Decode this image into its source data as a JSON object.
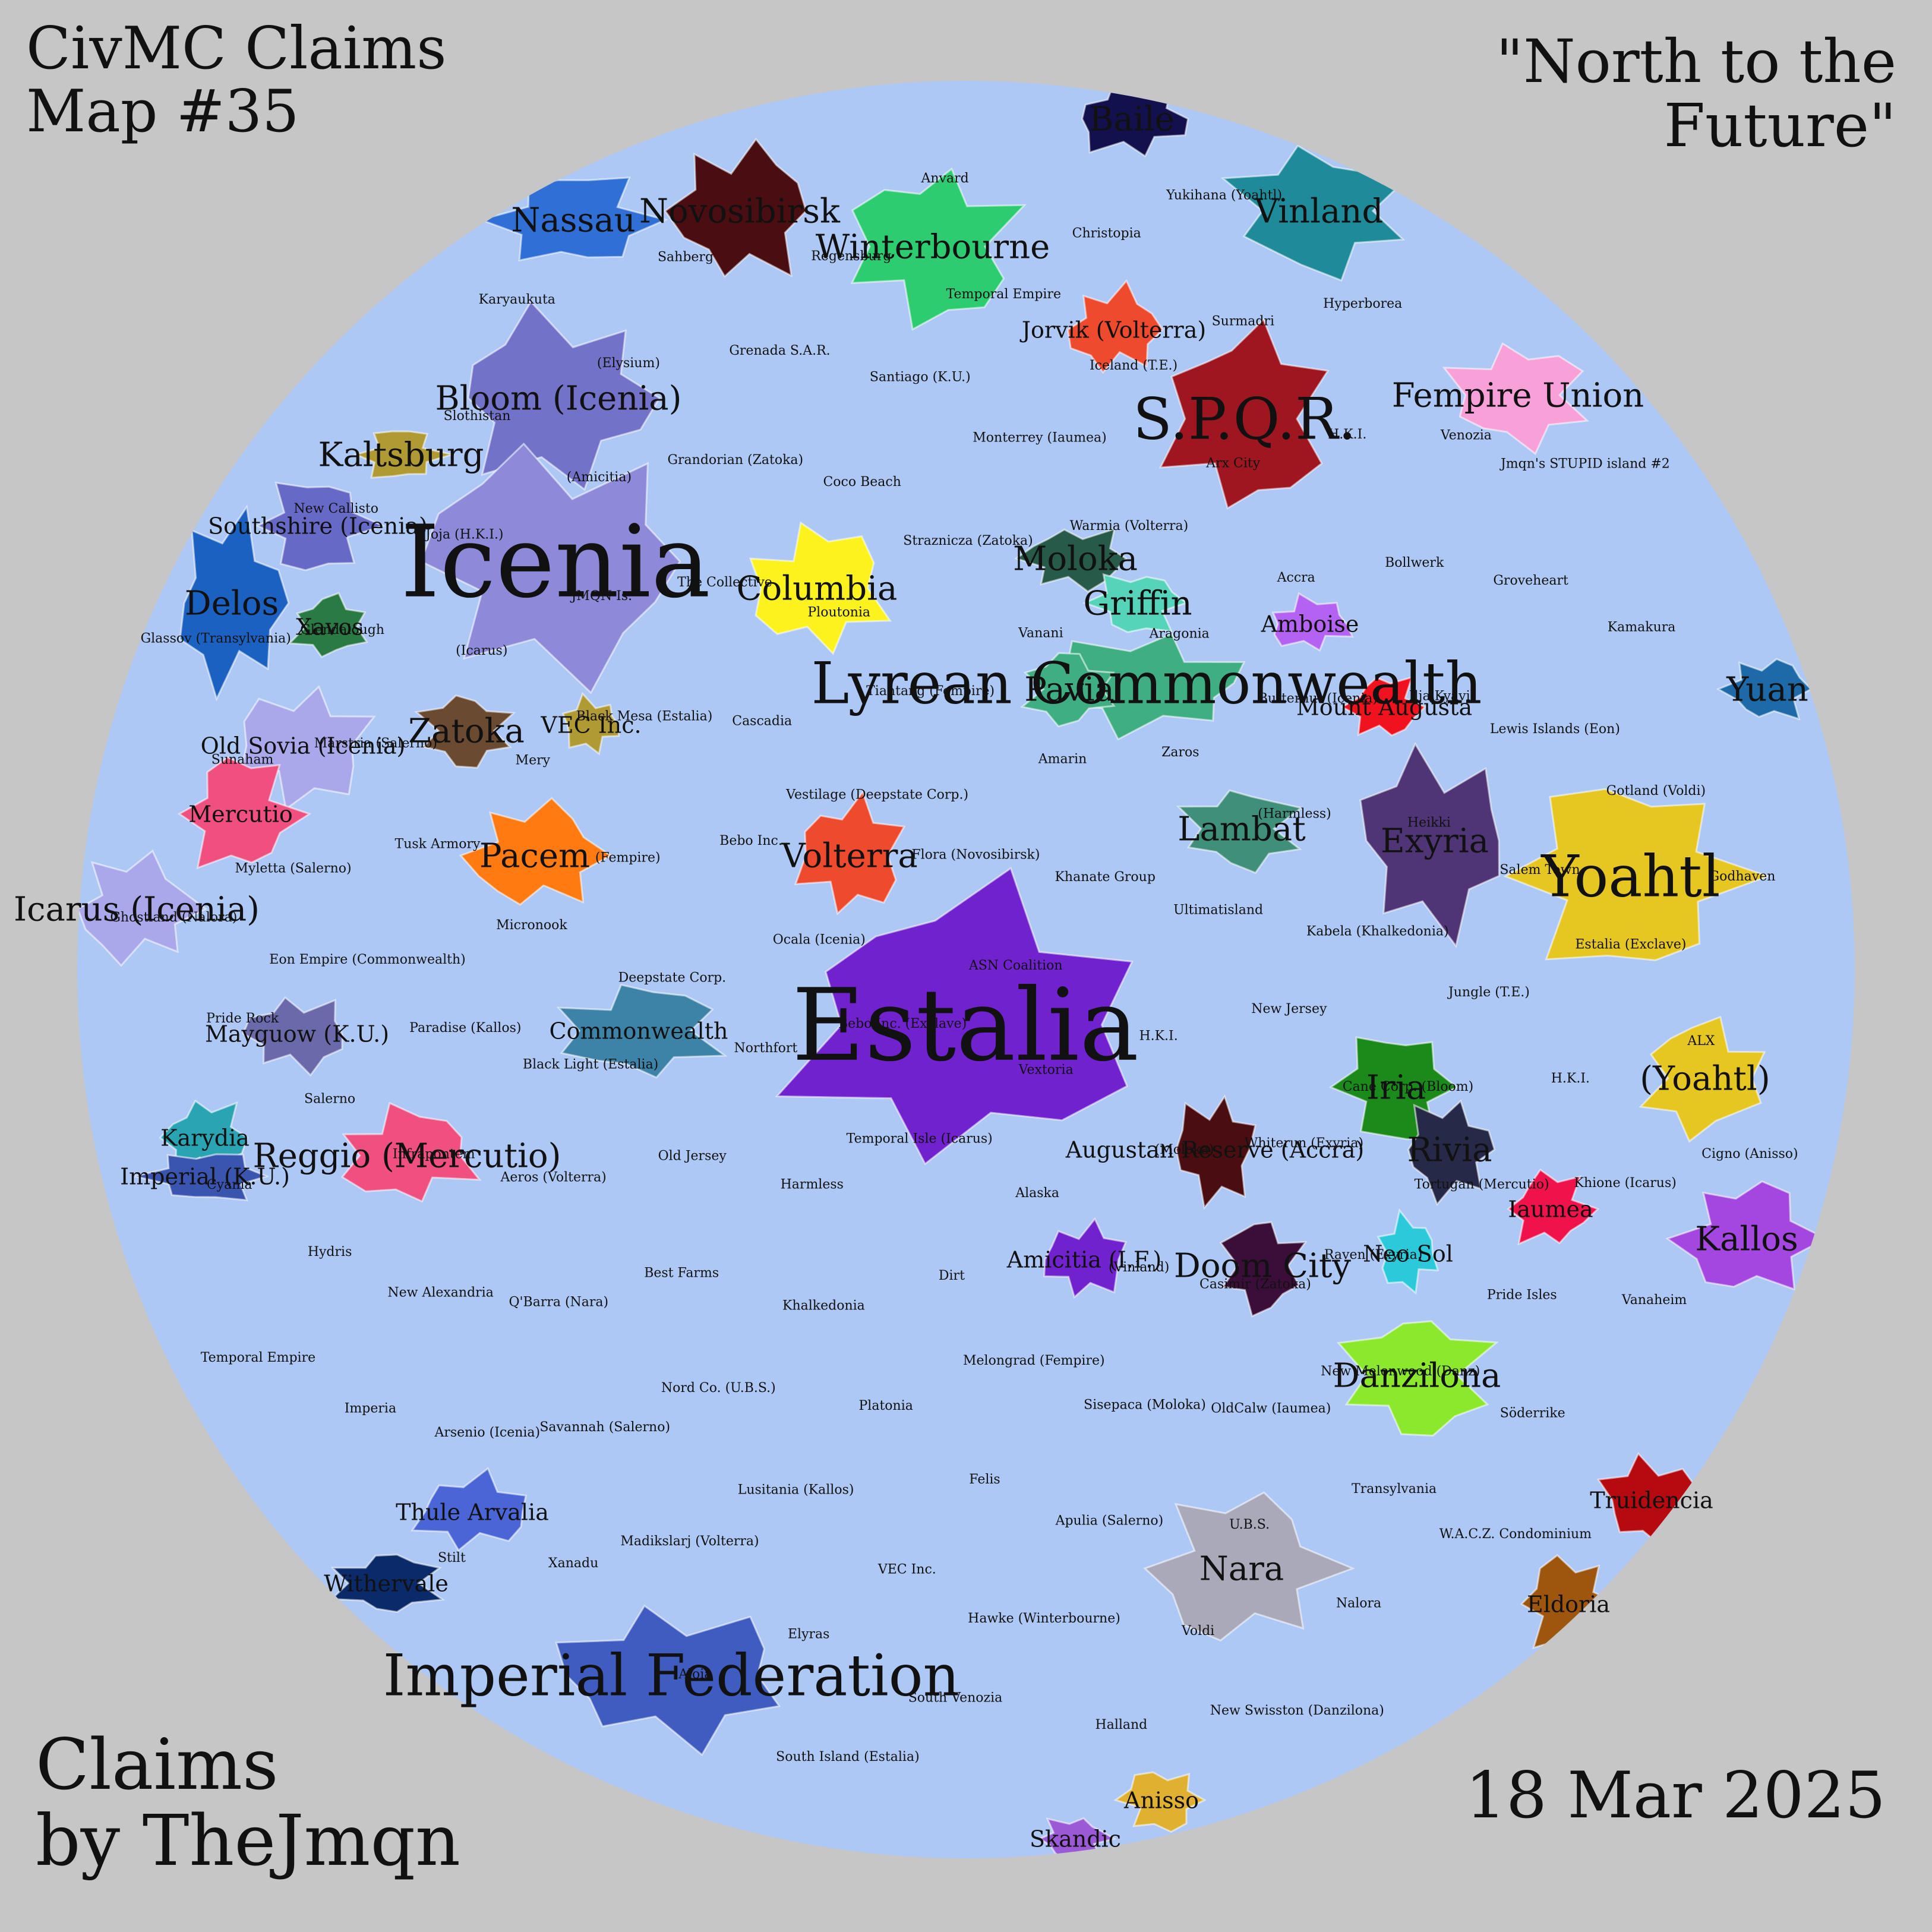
{
  "header": {
    "title_line1": "CivMC Claims",
    "title_line2": "Map #35",
    "motto_line1": "\"North to the",
    "motto_line2": "Future\""
  },
  "footer": {
    "credit_line1": "Claims",
    "credit_line2": "by TheJmqn",
    "date": "18 Mar 2025"
  },
  "colors": {
    "background": "#c6c6c6",
    "ocean": "#aec8f5",
    "border": "#ffffff"
  },
  "nations": [
    {
      "name": "Baile",
      "size": "medium",
      "color": "#13104e"
    },
    {
      "name": "Nassau",
      "size": "medium",
      "color": "#2f6fd6"
    },
    {
      "name": "Novosibirsk",
      "size": "medium",
      "color": "#4a0e12"
    },
    {
      "name": "Winterbourne",
      "size": "medium",
      "color": "#2ecc71"
    },
    {
      "name": "Vinland",
      "size": "medium",
      "color": "#1f8a99"
    },
    {
      "name": "Bloom (Icenia)",
      "size": "medium",
      "color": "#7272c9"
    },
    {
      "name": "Kaltsburg",
      "size": "medium",
      "color": "#b09a34"
    },
    {
      "name": "Jorvik (Volterra)",
      "size": "small",
      "color": "#ee4a2e"
    },
    {
      "name": "S.P.Q.R.",
      "size": "large",
      "color": "#9e1620"
    },
    {
      "name": "Fempire Union",
      "size": "medium",
      "color": "#f8a0d8"
    },
    {
      "name": "Icenia",
      "size": "xl",
      "color": "#8c8ad9"
    },
    {
      "name": "Southshire (Icenia)",
      "size": "small",
      "color": "#6669c6"
    },
    {
      "name": "Delos",
      "size": "medium",
      "color": "#1b61c2"
    },
    {
      "name": "Xavos",
      "size": "small",
      "color": "#2a7a43"
    },
    {
      "name": "Columbia",
      "size": "medium",
      "color": "#fcf31e"
    },
    {
      "name": "Moloka",
      "size": "medium",
      "color": "#285a4a"
    },
    {
      "name": "Griffin",
      "size": "medium",
      "color": "#56d4b9"
    },
    {
      "name": "Lyrean Commonwealth",
      "size": "large",
      "color": "#3fae83"
    },
    {
      "name": "Pavia",
      "size": "medium",
      "color": "#3fae83"
    },
    {
      "name": "Amboise",
      "size": "small",
      "color": "#b462f2"
    },
    {
      "name": "Mount Augusta",
      "size": "small",
      "color": "#f0121c"
    },
    {
      "name": "Yuan",
      "size": "medium",
      "color": "#1e6aa8"
    },
    {
      "name": "Old Sovia (Icenia)",
      "size": "small",
      "color": "#a8a8ea"
    },
    {
      "name": "Zatoka",
      "size": "medium",
      "color": "#6b4a32"
    },
    {
      "name": "VEC Inc.",
      "size": "small",
      "color": "#b09a34"
    },
    {
      "name": "Mercutio",
      "size": "small",
      "color": "#f05080"
    },
    {
      "name": "Pacem",
      "size": "medium",
      "color": "#ff7a10"
    },
    {
      "name": "Volterra",
      "size": "medium",
      "color": "#ee4a2e"
    },
    {
      "name": "Lambat",
      "size": "medium",
      "color": "#3f8f7a"
    },
    {
      "name": "Exyria",
      "size": "medium",
      "color": "#4f3575"
    },
    {
      "name": "Yoahtl",
      "size": "large",
      "color": "#e6c620"
    },
    {
      "name": "Icarus (Icenia)",
      "size": "medium",
      "color": "#a8a8ea"
    },
    {
      "name": "Estalia",
      "size": "xl",
      "color": "#7022cf"
    },
    {
      "name": "Commonwealth",
      "size": "small",
      "color": "#3d83a8"
    },
    {
      "name": "Mayguow (K.U.)",
      "size": "small",
      "color": "#6a6aaa"
    },
    {
      "name": "Iria",
      "size": "medium",
      "color": "#1b8a1b"
    },
    {
      "name": "Rivia",
      "size": "medium",
      "color": "#262a48"
    },
    {
      "name": "(Yoahtl)",
      "size": "medium",
      "color": "#e6c620"
    },
    {
      "name": "Reggio (Mercutio)",
      "size": "medium",
      "color": "#f05080"
    },
    {
      "name": "Karydia",
      "size": "small",
      "color": "#2aa3b3"
    },
    {
      "name": "Imperial (K.U.)",
      "size": "small",
      "color": "#3a55b0"
    },
    {
      "name": "Augustan Reserve (Accra)",
      "size": "small",
      "color": "#4a0e12"
    },
    {
      "name": "Doom City",
      "size": "medium",
      "color": "#3a0e38"
    },
    {
      "name": "Neo Sol",
      "size": "small",
      "color": "#2bc9d9"
    },
    {
      "name": "Iaumea",
      "size": "small",
      "color": "#f0124a"
    },
    {
      "name": "Kallos",
      "size": "medium",
      "color": "#a447e0"
    },
    {
      "name": "Amicitia (I.F.)",
      "size": "small",
      "color": "#7022cf"
    },
    {
      "name": "Danzilona",
      "size": "medium",
      "color": "#8be82c"
    },
    {
      "name": "Truidencia",
      "size": "small",
      "color": "#b50a10"
    },
    {
      "name": "Eldoria",
      "size": "small",
      "color": "#9e560e"
    },
    {
      "name": "Nara",
      "size": "medium",
      "color": "#a9a9b9"
    },
    {
      "name": "Thule Arvalia",
      "size": "small",
      "color": "#4a66d6"
    },
    {
      "name": "Withervale",
      "size": "small",
      "color": "#0a2a6a"
    },
    {
      "name": "Imperial Federation",
      "size": "large",
      "color": "#3f5cc0"
    },
    {
      "name": "Anisso",
      "size": "small",
      "color": "#e0b030"
    },
    {
      "name": "Skandic",
      "size": "small",
      "color": "#9a5ad6"
    }
  ],
  "small_labels": [
    "ASN Coalition",
    "Bebo Inc. (Exclave)",
    "Flora (Novosibirsk)",
    "Vextoria",
    "Ocala (Icenia)",
    "Khanate Group",
    "Temporal Isle (Icarus)",
    "Vestilage (Deepstate Corp.)",
    "H.K.I.",
    "Northfort",
    "Amarin",
    "Alaska",
    "Bebo Inc.",
    "Ultimatisland",
    "Harmless",
    "Tiantang (Fempire)",
    "(Moloka)",
    "Deepstate Corp.",
    "Zaros",
    "Dirt",
    "Cascadia",
    "New Jersey",
    "Old Jersey",
    "Vanani",
    "(Vinland)",
    "(Fempire)",
    "(Harmless)",
    "Khalkedonia",
    "Ploutonia",
    "Whiterun (Exyria)",
    "Black Light (Estalia)",
    "Aragonia",
    "Melongrad (Fempire)",
    "Black Mesa (Estalia)",
    "Kabela (Khalkedonia)",
    "Best Farms",
    "Straznicza (Zatoka)",
    "Casimir (Zatoka)",
    "Micronook",
    "Butternut (Icenia)",
    "Platonia",
    "The Collective",
    "Cane Corp. (Bloom)",
    "Aeros (Volterra)",
    "Warmia (Volterra)",
    "Sisepaca (Moloka)",
    "Mery",
    "Heikki",
    "Nord Co. (U.B.S.)",
    "Coco Beach",
    "Raven (Exyria)",
    "Paradise (Kallos)",
    "Accra",
    "Felis",
    "JMQN Is.",
    "Jungle (T.E.)",
    "Q'Barra (Nara)",
    "Monterrey (Iaumea)",
    "OldCalw (Iaumea)",
    "Tusk Armory",
    "Ilja Kyavil",
    "Lusitania (Kallos)",
    "Grandorian (Zatoka)",
    "Tortugan (Mercutio)",
    "Infrapontem",
    "Arx City",
    "Apulia (Salerno)",
    "(Icarus)",
    "Salem Town",
    "Savannah (Salerno)",
    "Santiago (K.U.)",
    "New Melonwood (Danz)",
    "Eon Empire (Commonwealth)",
    "Bollwerk",
    "VEC Inc.",
    "(Amicitia)",
    "H.K.I.",
    "New Alexandria",
    "Iceland (T.E.)",
    "U.B.S.",
    "Marstria (Salerno)",
    "Lewis Islands (Eon)",
    "Madikslarj (Volterra)",
    "Grenada S.A.R.",
    "Pride Isles",
    "Salerno",
    "H.K.I.",
    "Hawke (Winterbourne)",
    "Joja (H.K.I.)",
    "Estalia (Exclave)",
    "Arsenio (Icenia)",
    "Temporal Empire",
    "Transylvania",
    "Myletta (Salerno)",
    "Groveheart",
    "Elyras",
    "(Elysium)",
    "Khione (Icarus)",
    "Hydris",
    "Surmadri",
    "Voldi",
    "Glendalough",
    "Gotland (Voldi)",
    "Xanadu",
    "Regensburg",
    "Söderrike",
    "Pride Rock",
    "Venozia",
    "South Venozia",
    "Slothistan",
    "ALX",
    "Imperia",
    "Christopia",
    "Nalora",
    "Sunaham",
    "Kamakura",
    "Aloia",
    "Sahberg",
    "Vanaheim",
    "Cyania",
    "Hyperborea",
    "Halland",
    "New Callisto",
    "Godhaven",
    "Stilt",
    "Anvard",
    "W.A.C.Z. Condominium",
    "Ghostland (Nalora)",
    "Jmqn's STUPID island #2",
    "South Island (Estalia)",
    "Karyaukuta",
    "Cigno (Anisso)",
    "Temporal Empire",
    "Yukihana (Yoahtl)",
    "New Swisston (Danzilona)",
    "Glassov (Transylvania)"
  ]
}
